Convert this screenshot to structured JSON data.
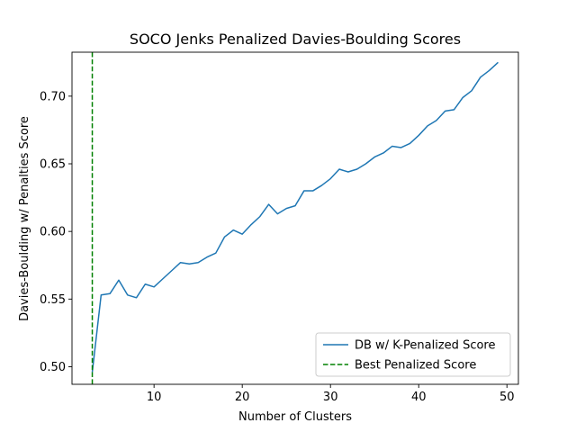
{
  "chart_data": {
    "type": "line",
    "title": "SOCO Jenks Penalized Davies-Boulding Scores",
    "xlabel": "Number of Clusters",
    "ylabel": "Davies-Boulding w/ Penalties Score",
    "xlim": [
      0.7,
      51.3
    ],
    "ylim": [
      0.487,
      0.7325
    ],
    "xticks": [
      10,
      20,
      30,
      40,
      50
    ],
    "yticks": [
      0.5,
      0.55,
      0.6,
      0.65,
      0.7
    ],
    "xtick_labels": [
      "10",
      "20",
      "30",
      "40",
      "50"
    ],
    "ytick_labels": [
      "0.50",
      "0.55",
      "0.60",
      "0.65",
      "0.70"
    ],
    "grid": false,
    "legend_position": "lower-right",
    "series": [
      {
        "name": "DB w/ K-Penalized Score",
        "color": "#1f77b4",
        "style": "solid",
        "x": [
          3,
          4,
          5,
          6,
          7,
          8,
          9,
          10,
          11,
          12,
          13,
          14,
          15,
          16,
          17,
          18,
          19,
          20,
          21,
          22,
          23,
          24,
          25,
          26,
          27,
          28,
          29,
          30,
          31,
          32,
          33,
          34,
          35,
          36,
          37,
          38,
          39,
          40,
          41,
          42,
          43,
          44,
          45,
          46,
          47,
          48,
          49
        ],
        "y": [
          0.496,
          0.553,
          0.554,
          0.564,
          0.553,
          0.551,
          0.561,
          0.559,
          0.565,
          0.571,
          0.577,
          0.576,
          0.577,
          0.581,
          0.584,
          0.596,
          0.601,
          0.598,
          0.605,
          0.611,
          0.62,
          0.613,
          0.617,
          0.619,
          0.63,
          0.63,
          0.634,
          0.639,
          0.646,
          0.644,
          0.646,
          0.65,
          0.655,
          0.658,
          0.663,
          0.662,
          0.665,
          0.671,
          0.678,
          0.682,
          0.689,
          0.69,
          0.699,
          0.704,
          0.714,
          0.719,
          0.725
        ]
      }
    ],
    "vlines": [
      {
        "name": "Best Penalized Score",
        "x": 3,
        "color": "#008000",
        "style": "dashed"
      }
    ]
  }
}
